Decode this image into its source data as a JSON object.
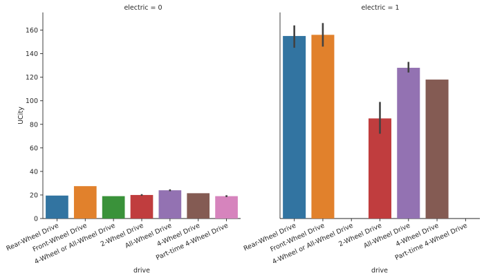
{
  "chart_data": {
    "type": "bar",
    "categories": [
      "Rear-Wheel Drive",
      "Front-Wheel Drive",
      "4-Wheel or All-Wheel Drive",
      "2-Wheel Drive",
      "All-Wheel Drive",
      "4-Wheel Drive",
      "Part-time 4-Wheel Drive"
    ],
    "colors": [
      "#3274a1",
      "#e1812c",
      "#3a923a",
      "#c03d3e",
      "#9372b2",
      "#845b53",
      "#d684bd"
    ],
    "errorbar_color": "#424242",
    "xlabel": "drive",
    "ylabel": "UCity",
    "ylim": [
      0,
      175
    ],
    "yticks": [
      0,
      20,
      40,
      60,
      80,
      100,
      120,
      140,
      160
    ],
    "grid": false,
    "panels": [
      {
        "title": "electric = 0",
        "values": [
          19.5,
          27.5,
          19,
          20,
          24,
          21.5,
          19
        ],
        "error_low": [
          null,
          null,
          null,
          19.3,
          23.2,
          null,
          18.2
        ],
        "error_high": [
          null,
          null,
          null,
          20.7,
          24.8,
          null,
          19.8
        ]
      },
      {
        "title": "electric = 1",
        "values": [
          155,
          156,
          null,
          85,
          128,
          118,
          null
        ],
        "error_low": [
          145,
          146,
          null,
          72,
          124,
          null,
          null
        ],
        "error_high": [
          164,
          166,
          null,
          99,
          133,
          null,
          null
        ]
      }
    ]
  }
}
